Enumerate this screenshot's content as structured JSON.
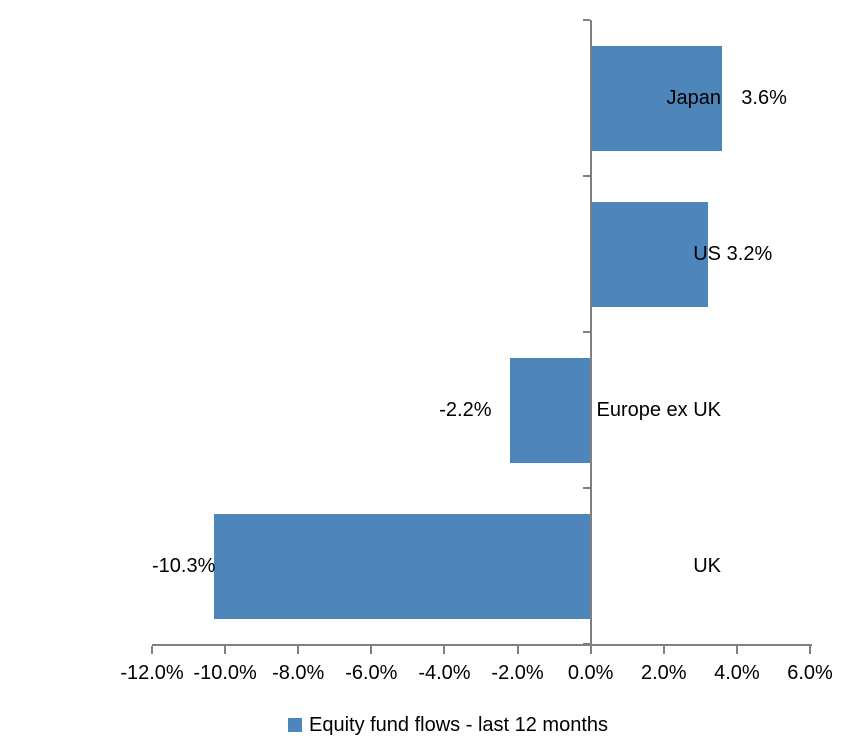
{
  "chart_data": {
    "type": "bar",
    "orientation": "horizontal",
    "title": "",
    "xlabel": "",
    "ylabel": "",
    "categories": [
      "Japan",
      "US",
      "Europe ex UK",
      "UK"
    ],
    "values": [
      3.6,
      3.2,
      -2.2,
      -10.3
    ],
    "value_labels": [
      "3.6%",
      "3.2%",
      "-2.2%",
      "-10.3%"
    ],
    "series_name": "Equity fund flows - last 12 months",
    "xlim": [
      -12,
      6
    ],
    "x_tick_values": [
      -12,
      -10,
      -8,
      -6,
      -4,
      -2,
      0,
      2,
      4,
      6
    ],
    "x_tick_labels": [
      "-12.0%",
      "-10.0%",
      "-8.0%",
      "-6.0%",
      "-4.0%",
      "-2.0%",
      "0.0%",
      "2.0%",
      "4.0%",
      "6.0%"
    ],
    "grid": false,
    "legend": {
      "position": "bottom",
      "label": "Equity fund flows - last 12 months",
      "swatch_color": "#4e86bc"
    },
    "colors": {
      "bar": "#4e86bc",
      "axis": "#808080",
      "text": "#000000",
      "background": "#ffffff"
    }
  }
}
